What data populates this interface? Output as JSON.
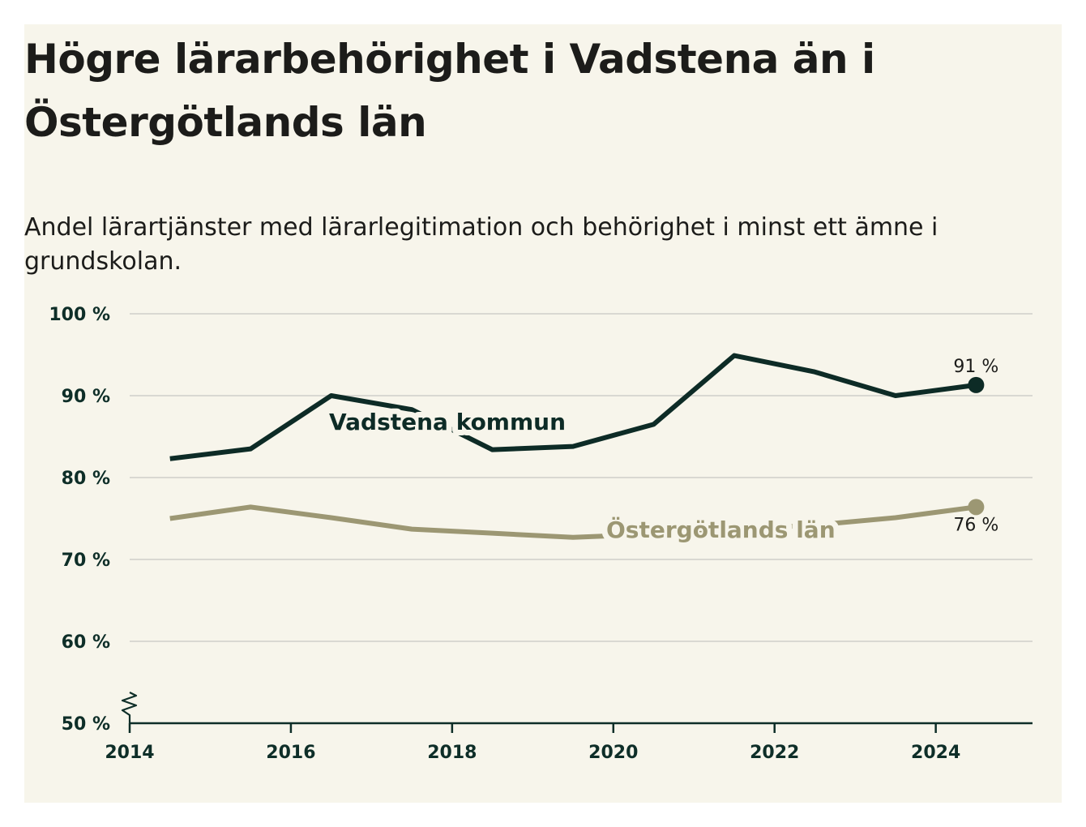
{
  "title": "Högre lärarbehörighet i Vadstena än i Östergötlands län",
  "subtitle": "Andel lärartjänster med lärarlegitimation och behörighet i minst ett ämne i grundskolan.",
  "colors": {
    "background": "#f7f5eb",
    "vadstena": "#0d2b26",
    "ostergotland": "#9c9773",
    "grid": "#d9d8d2",
    "axis": "#0e2e28"
  },
  "chart_data": {
    "type": "line",
    "title": "Högre lärarbehörighet i Vadstena än i Östergötlands län",
    "subtitle": "Andel lärartjänster med lärarlegitimation och behörighet i minst ett ämne i grundskolan.",
    "xlim": [
      2014,
      2025.2
    ],
    "ylim": [
      50,
      100
    ],
    "y_axis_break": true,
    "grid": true,
    "x_ticks": [
      {
        "value": 2014,
        "label": "2014"
      },
      {
        "value": 2016,
        "label": "2016"
      },
      {
        "value": 2018,
        "label": "2018"
      },
      {
        "value": 2020,
        "label": "2020"
      },
      {
        "value": 2022,
        "label": "2022"
      },
      {
        "value": 2024,
        "label": "2024"
      }
    ],
    "y_ticks": [
      {
        "value": 50,
        "label": "50 %"
      },
      {
        "value": 60,
        "label": "60 %"
      },
      {
        "value": 70,
        "label": "70 %"
      },
      {
        "value": 80,
        "label": "80 %"
      },
      {
        "value": 90,
        "label": "90 %"
      },
      {
        "value": 100,
        "label": "100 %"
      }
    ],
    "x": [
      2014.5,
      2015.5,
      2016.5,
      2017.5,
      2018.5,
      2019.5,
      2020.5,
      2021.5,
      2022.5,
      2023.5,
      2024.5
    ],
    "series": [
      {
        "name": "Vadstena kommun",
        "color": "#0d2b26",
        "values": [
          82.3,
          83.5,
          90.0,
          88.3,
          83.4,
          83.8,
          86.5,
          94.9,
          92.9,
          90.0,
          91.3
        ],
        "end_label": "91 %"
      },
      {
        "name": "Östergötlands län",
        "color": "#9c9773",
        "values": [
          75.0,
          76.4,
          75.1,
          73.7,
          73.2,
          72.7,
          73.1,
          73.7,
          74.2,
          75.1,
          76.4
        ],
        "end_label": "76 %"
      }
    ]
  }
}
